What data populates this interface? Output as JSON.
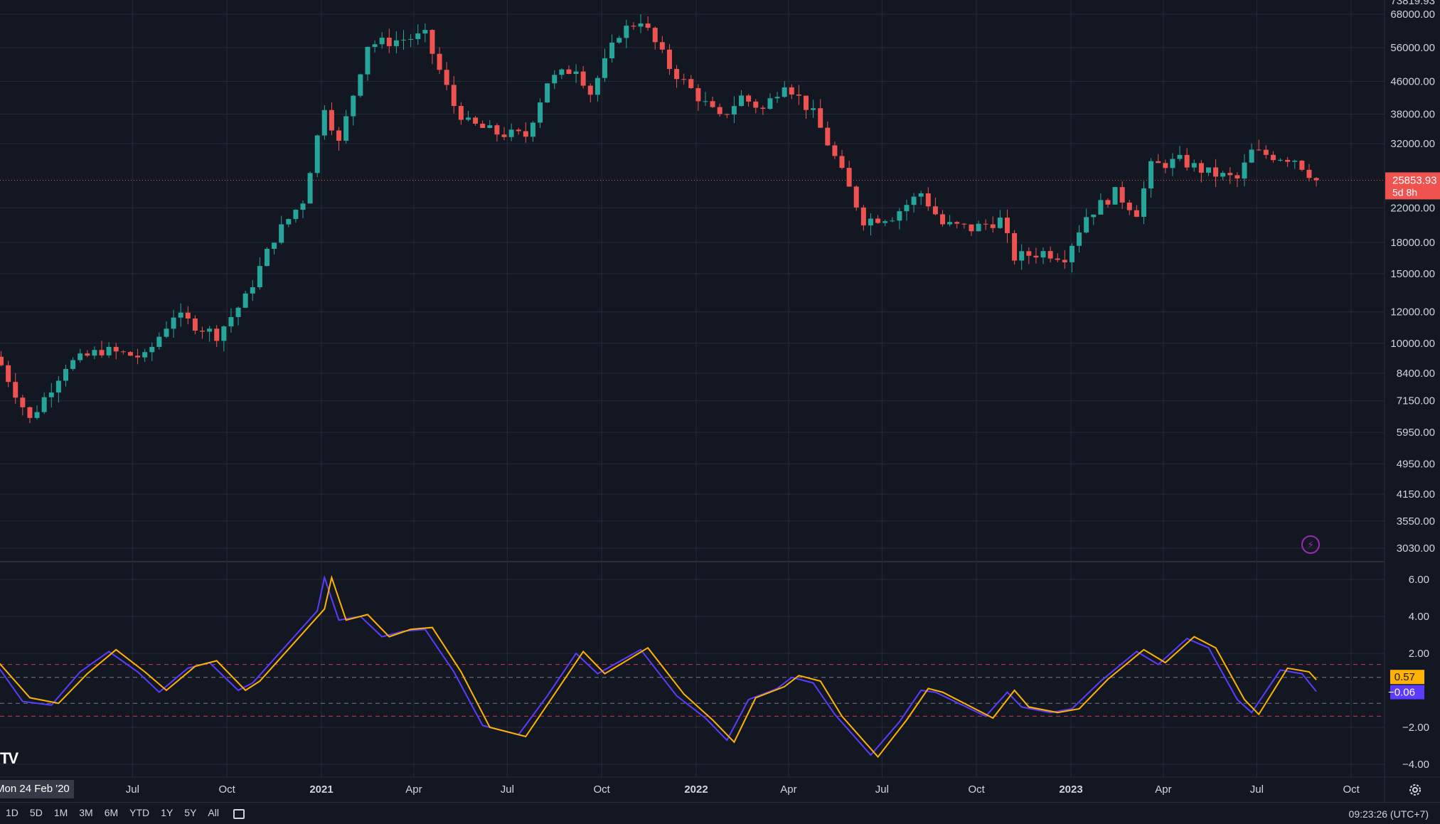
{
  "chart_data": [
    {
      "type": "candlestick",
      "scale": "log",
      "price_ticks": [
        68000,
        56000,
        46000,
        38000,
        32000,
        22000,
        18000,
        15000,
        12000,
        10000,
        8400,
        7150,
        5950,
        4950,
        4150,
        3550,
        3030
      ],
      "price_tick_labels": [
        "68000.00",
        "56000.00",
        "46000.00",
        "38000.00",
        "32000.00",
        "22000.00",
        "18000.00",
        "15000.00",
        "12000.00",
        "10000.00",
        "8400.00",
        "7150.00",
        "5950.00",
        "4950.00",
        "4150.00",
        "3550.00",
        "3030.00"
      ],
      "top_partial_label": "73819.93",
      "last_price": 25853.93,
      "last_price_label": "25853.93",
      "countdown_label": "5d 8h",
      "price_key": [
        [
          "2020-02-24",
          8800
        ],
        [
          "2020-03-23",
          6400
        ],
        [
          "2020-04-27",
          8800
        ],
        [
          "2020-06-01",
          9600
        ],
        [
          "2020-07-13",
          9200
        ],
        [
          "2020-08-10",
          11800
        ],
        [
          "2020-09-21",
          10500
        ],
        [
          "2020-10-19",
          13000
        ],
        [
          "2020-11-16",
          18500
        ],
        [
          "2020-12-14",
          23000
        ],
        [
          "2021-01-04",
          40000
        ],
        [
          "2021-01-18",
          32000
        ],
        [
          "2021-02-15",
          57000
        ],
        [
          "2021-03-08",
          58000
        ],
        [
          "2021-04-12",
          60000
        ],
        [
          "2021-05-10",
          40000
        ],
        [
          "2021-05-24",
          36000
        ],
        [
          "2021-06-21",
          34000
        ],
        [
          "2021-07-19",
          33500
        ],
        [
          "2021-08-09",
          46000
        ],
        [
          "2021-09-06",
          50000
        ],
        [
          "2021-09-20",
          43000
        ],
        [
          "2021-10-18",
          61000
        ],
        [
          "2021-11-08",
          66000
        ],
        [
          "2021-12-06",
          50000
        ],
        [
          "2022-01-03",
          42000
        ],
        [
          "2022-01-24",
          37000
        ],
        [
          "2022-02-14",
          42000
        ],
        [
          "2022-03-07",
          39000
        ],
        [
          "2022-03-28",
          46000
        ],
        [
          "2022-04-25",
          38000
        ],
        [
          "2022-05-16",
          29500
        ],
        [
          "2022-06-13",
          20500
        ],
        [
          "2022-07-11",
          21000
        ],
        [
          "2022-08-08",
          24000
        ],
        [
          "2022-08-29",
          20000
        ],
        [
          "2022-09-26",
          19500
        ],
        [
          "2022-10-24",
          20500
        ],
        [
          "2022-11-07",
          16500
        ],
        [
          "2022-12-05",
          17000
        ],
        [
          "2022-12-26",
          16600
        ],
        [
          "2023-01-16",
          21000
        ],
        [
          "2023-02-13",
          24000
        ],
        [
          "2023-03-06",
          21500
        ],
        [
          "2023-03-20",
          28000
        ],
        [
          "2023-04-17",
          29000
        ],
        [
          "2023-05-15",
          27000
        ],
        [
          "2023-06-12",
          26000
        ],
        [
          "2023-06-26",
          30500
        ],
        [
          "2023-07-17",
          29800
        ],
        [
          "2023-08-07",
          29300
        ],
        [
          "2023-08-28",
          25850
        ]
      ]
    },
    {
      "type": "line",
      "name": "oscillator",
      "y_ticks": [
        6,
        4,
        2,
        -2,
        -4
      ],
      "y_tick_labels": [
        "6.00",
        "4.00",
        "2.00",
        "−2.00",
        "−4.00"
      ],
      "ylim": [
        -4.6,
        6.8
      ],
      "reference_lines": {
        "red": [
          1.4,
          -1.4
        ],
        "gray": [
          0.7,
          -0.7
        ]
      },
      "series": [
        {
          "color": "#5b3cff",
          "last_value_label": "−0.06",
          "points": [
            [
              "2020-02-17",
              1.6
            ],
            [
              "2020-03-16",
              -0.6
            ],
            [
              "2020-04-13",
              -0.8
            ],
            [
              "2020-05-11",
              1.0
            ],
            [
              "2020-06-08",
              2.1
            ],
            [
              "2020-07-06",
              1.0
            ],
            [
              "2020-07-27",
              -0.1
            ],
            [
              "2020-08-24",
              1.2
            ],
            [
              "2020-09-14",
              1.5
            ],
            [
              "2020-10-12",
              0.0
            ],
            [
              "2020-10-26",
              0.4
            ],
            [
              "2020-12-07",
              3.0
            ],
            [
              "2020-12-28",
              4.3
            ],
            [
              "2021-01-04",
              6.1
            ],
            [
              "2021-01-18",
              3.8
            ],
            [
              "2021-02-08",
              4.0
            ],
            [
              "2021-03-01",
              2.9
            ],
            [
              "2021-03-22",
              3.2
            ],
            [
              "2021-04-12",
              3.3
            ],
            [
              "2021-05-10",
              1.0
            ],
            [
              "2021-06-07",
              -1.9
            ],
            [
              "2021-07-12",
              -2.4
            ],
            [
              "2021-08-09",
              -0.3
            ],
            [
              "2021-09-06",
              2.0
            ],
            [
              "2021-09-27",
              0.9
            ],
            [
              "2021-11-08",
              2.2
            ],
            [
              "2021-12-13",
              -0.3
            ],
            [
              "2022-01-10",
              -1.5
            ],
            [
              "2022-01-31",
              -2.7
            ],
            [
              "2022-02-21",
              -0.5
            ],
            [
              "2022-03-21",
              0.1
            ],
            [
              "2022-04-04",
              0.7
            ],
            [
              "2022-04-25",
              0.4
            ],
            [
              "2022-05-16",
              -1.3
            ],
            [
              "2022-06-20",
              -3.5
            ],
            [
              "2022-07-18",
              -1.7
            ],
            [
              "2022-08-08",
              0.0
            ],
            [
              "2022-08-22",
              -0.1
            ],
            [
              "2022-10-10",
              -1.4
            ],
            [
              "2022-10-31",
              -0.1
            ],
            [
              "2022-11-14",
              -0.9
            ],
            [
              "2022-12-12",
              -1.2
            ],
            [
              "2023-01-02",
              -1.0
            ],
            [
              "2023-01-30",
              0.5
            ],
            [
              "2023-03-06",
              2.1
            ],
            [
              "2023-03-27",
              1.4
            ],
            [
              "2023-04-24",
              2.8
            ],
            [
              "2023-05-15",
              2.3
            ],
            [
              "2023-06-12",
              -0.5
            ],
            [
              "2023-06-26",
              -1.2
            ],
            [
              "2023-07-24",
              1.1
            ],
            [
              "2023-08-14",
              0.9
            ],
            [
              "2023-08-28",
              -0.06
            ]
          ]
        },
        {
          "color": "#ffb300",
          "last_value_label": "0.57",
          "points": [
            [
              "2020-02-17",
              1.8
            ],
            [
              "2020-03-23",
              -0.4
            ],
            [
              "2020-04-20",
              -0.7
            ],
            [
              "2020-05-18",
              0.9
            ],
            [
              "2020-06-15",
              2.2
            ],
            [
              "2020-07-13",
              1.0
            ],
            [
              "2020-08-03",
              0.0
            ],
            [
              "2020-08-31",
              1.3
            ],
            [
              "2020-09-21",
              1.6
            ],
            [
              "2020-10-19",
              0.0
            ],
            [
              "2020-11-02",
              0.5
            ],
            [
              "2020-12-14",
              3.1
            ],
            [
              "2021-01-04",
              4.4
            ],
            [
              "2021-01-11",
              6.1
            ],
            [
              "2021-01-25",
              3.8
            ],
            [
              "2021-02-15",
              4.1
            ],
            [
              "2021-03-08",
              2.9
            ],
            [
              "2021-03-29",
              3.3
            ],
            [
              "2021-04-19",
              3.4
            ],
            [
              "2021-05-17",
              1.0
            ],
            [
              "2021-06-14",
              -2.0
            ],
            [
              "2021-07-19",
              -2.5
            ],
            [
              "2021-08-16",
              -0.2
            ],
            [
              "2021-09-13",
              2.1
            ],
            [
              "2021-10-04",
              0.9
            ],
            [
              "2021-11-15",
              2.3
            ],
            [
              "2021-12-20",
              -0.2
            ],
            [
              "2022-01-17",
              -1.6
            ],
            [
              "2022-02-07",
              -2.8
            ],
            [
              "2022-02-28",
              -0.4
            ],
            [
              "2022-03-28",
              0.2
            ],
            [
              "2022-04-11",
              0.8
            ],
            [
              "2022-05-02",
              0.5
            ],
            [
              "2022-05-23",
              -1.4
            ],
            [
              "2022-06-27",
              -3.6
            ],
            [
              "2022-07-25",
              -1.6
            ],
            [
              "2022-08-15",
              0.1
            ],
            [
              "2022-08-29",
              -0.1
            ],
            [
              "2022-10-17",
              -1.5
            ],
            [
              "2022-11-07",
              0.0
            ],
            [
              "2022-11-21",
              -0.9
            ],
            [
              "2022-12-19",
              -1.2
            ],
            [
              "2023-01-09",
              -1.0
            ],
            [
              "2023-02-06",
              0.6
            ],
            [
              "2023-03-13",
              2.2
            ],
            [
              "2023-04-03",
              1.5
            ],
            [
              "2023-05-01",
              2.9
            ],
            [
              "2023-05-22",
              2.3
            ],
            [
              "2023-06-19",
              -0.5
            ],
            [
              "2023-07-03",
              -1.3
            ],
            [
              "2023-07-31",
              1.2
            ],
            [
              "2023-08-21",
              1.0
            ],
            [
              "2023-08-28",
              0.57
            ]
          ]
        }
      ]
    }
  ],
  "time_axis": {
    "labels": [
      {
        "date": "2020-07-01",
        "text": "Jul",
        "bold": false
      },
      {
        "date": "2020-10-01",
        "text": "Oct",
        "bold": false
      },
      {
        "date": "2021-01-01",
        "text": "2021",
        "bold": true
      },
      {
        "date": "2021-04-01",
        "text": "Apr",
        "bold": false
      },
      {
        "date": "2021-07-01",
        "text": "Jul",
        "bold": false
      },
      {
        "date": "2021-10-01",
        "text": "Oct",
        "bold": false
      },
      {
        "date": "2022-01-01",
        "text": "2022",
        "bold": true
      },
      {
        "date": "2022-04-01",
        "text": "Apr",
        "bold": false
      },
      {
        "date": "2022-07-01",
        "text": "Jul",
        "bold": false
      },
      {
        "date": "2022-10-01",
        "text": "Oct",
        "bold": false
      },
      {
        "date": "2023-01-01",
        "text": "2023",
        "bold": true
      },
      {
        "date": "2023-04-01",
        "text": "Apr",
        "bold": false
      },
      {
        "date": "2023-07-01",
        "text": "Jul",
        "bold": false
      },
      {
        "date": "2023-10-01",
        "text": "Oct",
        "bold": false
      }
    ],
    "crosshair_date_label": "Mon 24 Feb '20"
  },
  "colors": {
    "background": "#131722",
    "up": "#26a69a",
    "down": "#ef5350",
    "grid": "#252a36"
  },
  "toolbar": {
    "range_buttons": [
      "1D",
      "5D",
      "1M",
      "3M",
      "6M",
      "YTD",
      "1Y",
      "5Y",
      "All"
    ],
    "clock": "09:23:26 (UTC+7)"
  },
  "icons": {
    "logo": "tradingview-logo",
    "alert": "lightning-icon",
    "settings": "gear-icon",
    "calendar": "calendar-icon"
  },
  "logo_text": "TV"
}
